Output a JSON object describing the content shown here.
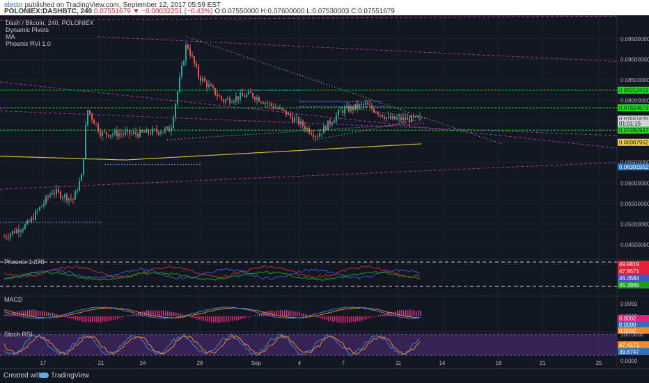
{
  "header": {
    "author": "electo",
    "published": "published on TradingView.com, September 12, 2017 05:59 EST",
    "symbol": "POLONIEX:DASHBTC, 240",
    "last": "0.07551679",
    "change": "−0.00032251 (−0.43%)",
    "open": "O:0.07550000",
    "high": "H:0.07600000",
    "low": "L:0.07530003",
    "close": "C:0.07551679"
  },
  "legend": {
    "title": "Dash / Bitcoin, 240, POLONIEX",
    "items": [
      "Dynamic Pivots",
      "MA",
      "Phoenix RVI 1.0"
    ]
  },
  "footer": {
    "created": "Created with",
    "brand": "TradingView"
  },
  "colors": {
    "up": "#26a69a",
    "down": "#ef5350",
    "pivot_green": "#19e219",
    "trend_magenta": "#c03ac0",
    "ma_yellow": "#c8c233",
    "background": "#131722"
  },
  "chart_data": [
    {
      "type": "candlestick",
      "title": "Dash / Bitcoin, 240, POLONIEX",
      "x_ticks": [
        "17",
        "21",
        "24",
        "28",
        "Sep",
        "4",
        "7",
        "11",
        "14",
        "18",
        "21",
        "25"
      ],
      "y_ticks": [
        "0.09500000",
        "0.09000000",
        "0.08500000",
        "0.08000000",
        "0.07500000",
        "0.07000000",
        "0.06500000",
        "0.06000000",
        "0.05500000",
        "0.05000000",
        "0.04500000"
      ],
      "ylim": [
        0.042,
        0.098
      ],
      "price_labels": [
        {
          "label": "0.08252419",
          "value": 0.08252419,
          "color": "#19e219"
        },
        {
          "label": "0.07824573",
          "value": 0.07824573,
          "color": "#19e219"
        },
        {
          "label": "0.07551679",
          "value": 0.07551679,
          "color": "#d0d3da"
        },
        {
          "label": "01:01:15",
          "value": 0.0745,
          "color": "#d0d3da"
        },
        {
          "label": "0.07282947",
          "value": 0.07282947,
          "color": "#19e219"
        },
        {
          "label": "0.06987902",
          "value": 0.06987902,
          "color": "#f5d33a"
        },
        {
          "label": "0.06391952",
          "value": 0.06391952,
          "color": "#2f6fb7"
        }
      ],
      "pivot_levels": [
        0.08252419,
        0.07824573,
        0.07282947
      ],
      "trend_points": [
        [
          30,
          0.0955
        ],
        [
          4,
          0.0825
        ],
        [
          8,
          0.0785
        ],
        [
          9,
          0.0785
        ],
        [
          10,
          0.07
        ],
        [
          11,
          0.073
        ]
      ],
      "ma_start": 0.0657,
      "ma_end": 0.0695
    },
    {
      "type": "line",
      "title": "Phoenix 1.378",
      "y_ticks": [
        "25.0000"
      ],
      "value_labels": [
        {
          "label": "49.9819",
          "color": "#e6223a"
        },
        {
          "label": "47.9571",
          "color": "#e6223a"
        },
        {
          "label": "46.4584",
          "color": "#3f56c9"
        },
        {
          "label": "45.3969",
          "color": "#19a019"
        }
      ],
      "levels": [
        50,
        25
      ]
    },
    {
      "type": "line",
      "title": "MACD",
      "y_ticks": [
        "0.0050",
        "0.0000"
      ],
      "value_labels": [
        {
          "label": "0.0002",
          "color": "#e6227a"
        },
        {
          "label": "0.0000",
          "color": "#2f6fb7"
        },
        {
          "label": "0.0002",
          "color": "#f08a2a"
        }
      ]
    },
    {
      "type": "line",
      "title": "Stoch RSI",
      "y_ticks": [
        "100.0000",
        "50.0000",
        "0.0000"
      ],
      "value_labels": [
        {
          "label": "47.4171",
          "color": "#f08a2a"
        },
        {
          "label": "39.8747",
          "color": "#2f6fb7"
        }
      ],
      "band": [
        20,
        80
      ]
    }
  ]
}
